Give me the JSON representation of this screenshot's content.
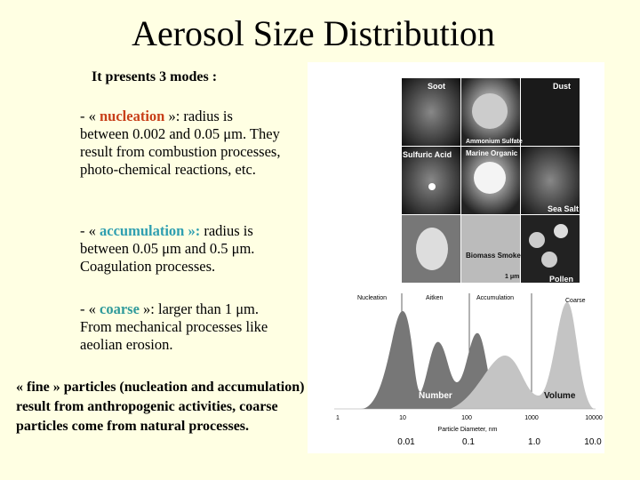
{
  "title": "Aerosol Size Distribution",
  "subtitle": "It presents 3 modes :",
  "modes": [
    {
      "prefix": "- « ",
      "term": "nucleation",
      "text": "  »: radius is between 0.002 and 0.05 μm. They result from combustion processes, photo-chemical reactions, etc."
    },
    {
      "prefix": "- « ",
      "term": "accumulation »:",
      "text": " radius is between 0.05 μm and 0.5 μm. Coagulation processes."
    },
    {
      "prefix": "- « ",
      "term": "coarse",
      "text": " »: larger than 1 μm. From mechanical processes like aeolian erosion."
    }
  ],
  "note": {
    "prefix": " « ",
    "term": "fine",
    "text": " » particles (nucleation and accumulation) result from anthropogenic activities, coarse particles come from natural processes."
  },
  "figure": {
    "particles": [
      "Soot",
      "Dust",
      "Ammonium Sulfate",
      "Sulfuric Acid",
      "Marine Organic",
      "Sea Salt",
      "Biomass Smoke",
      "Pollen"
    ],
    "scale_bar": "1 μm",
    "mode_labels": [
      "Nucleation",
      "Aitken",
      "Accumulation",
      "Coarse"
    ],
    "curve_labels": [
      "Number",
      "Volume"
    ],
    "x_ticks_nm": [
      "1",
      "10",
      "100",
      "1000",
      "10000"
    ],
    "x_axis_label": "Particle Diameter, nm",
    "x_ticks_um": [
      "0.01",
      "0.1",
      "1.0",
      "10.0"
    ]
  }
}
